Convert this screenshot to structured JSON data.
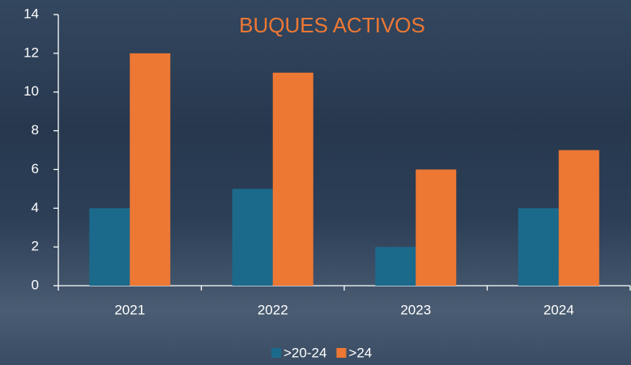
{
  "chart_data": {
    "type": "bar",
    "title": "BUQUES ACTIVOS",
    "categories": [
      "2021",
      "2022",
      "2023",
      "2024"
    ],
    "series": [
      {
        "name": ">20-24",
        "color": "#1b6a8c",
        "values": [
          4,
          5,
          2,
          4
        ]
      },
      {
        "name": ">24",
        "color": "#ed7834",
        "values": [
          12,
          11,
          6,
          7
        ]
      }
    ],
    "ylim": [
      0,
      14
    ],
    "yticks": [
      0,
      2,
      4,
      6,
      8,
      10,
      12,
      14
    ],
    "legend": "bottom"
  }
}
